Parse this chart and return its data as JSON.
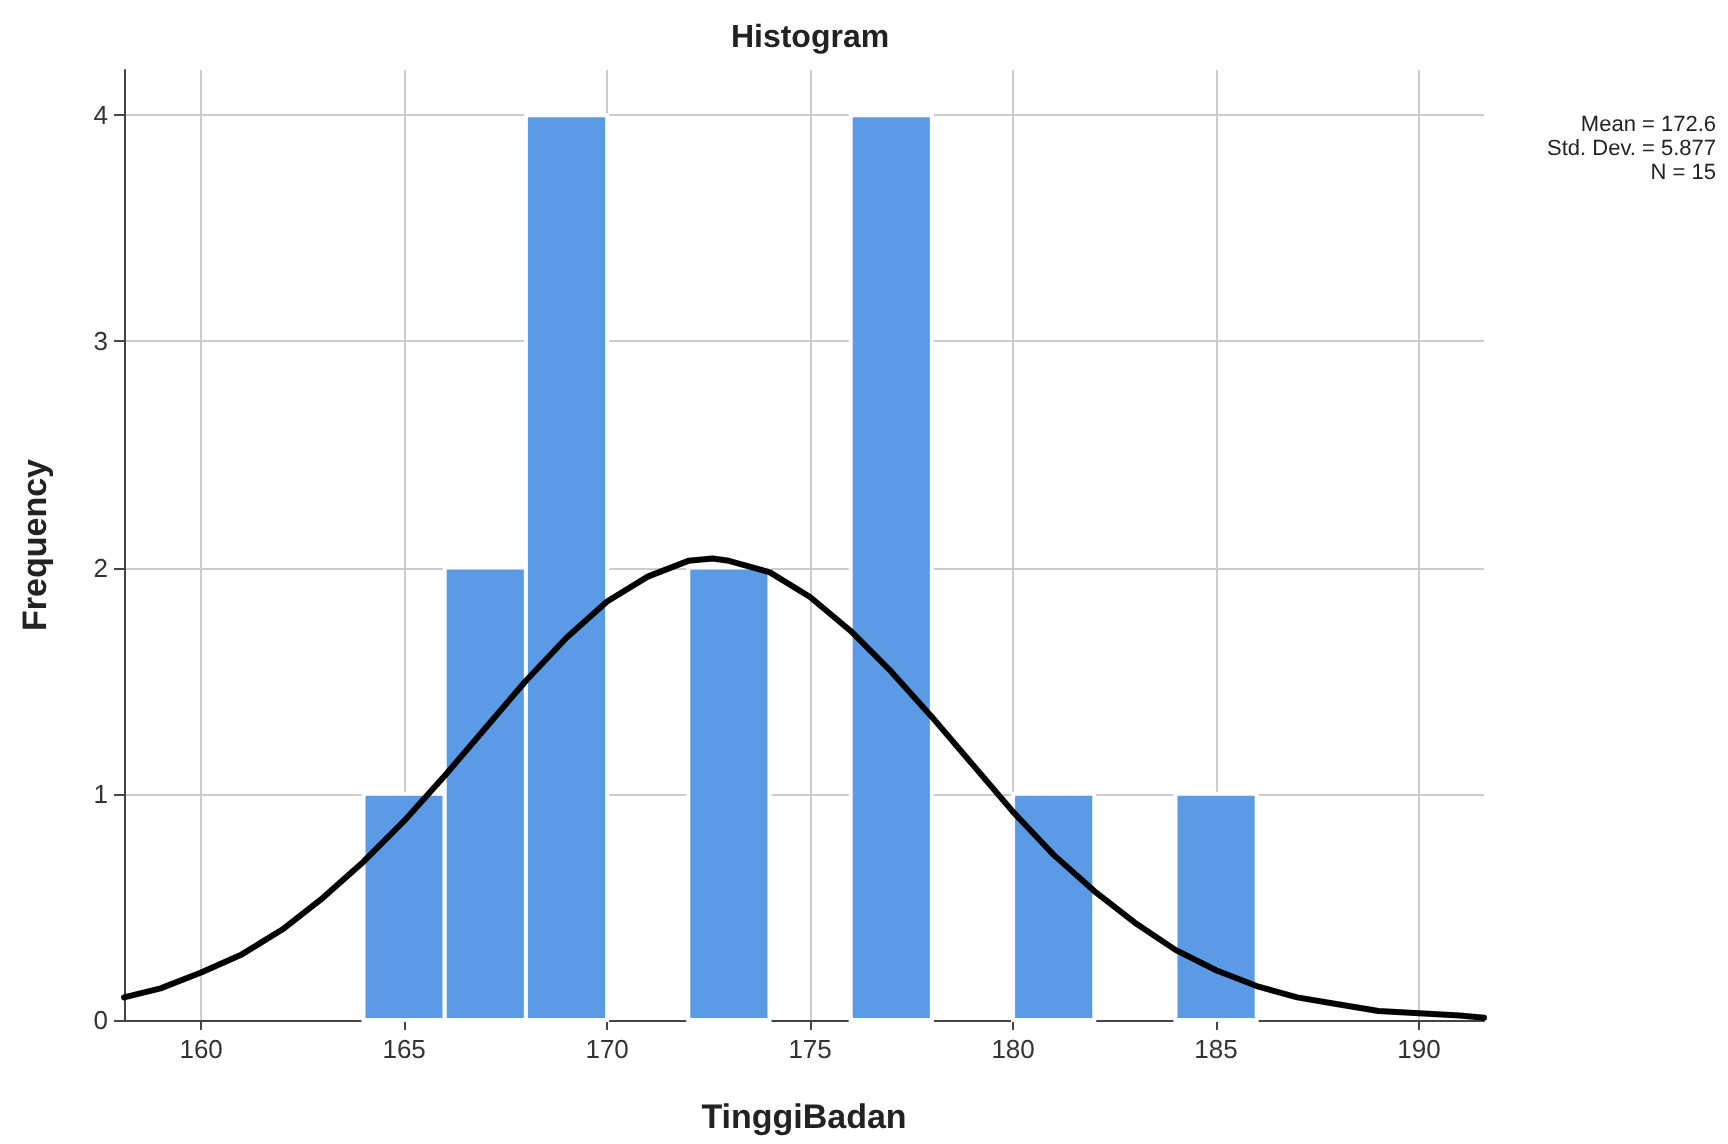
{
  "chart_data": {
    "type": "histogram",
    "title": "Histogram",
    "xlabel": "TinggiBadan",
    "ylabel": "Frequency",
    "annotations": [
      "Mean = 172.6",
      "Std. Dev. = 5.877",
      "N = 15"
    ],
    "series": [
      {
        "color": "#5b9be6",
        "bins": [
          164,
          166,
          168,
          170,
          172,
          174,
          176,
          178,
          180,
          182,
          184,
          186
        ],
        "values": [
          1,
          2,
          4,
          0,
          2,
          0,
          4,
          0,
          1,
          0,
          1
        ]
      },
      {
        "type": "line",
        "color": "#000000",
        "x": [
          158.1,
          159,
          160,
          161,
          162,
          163,
          164,
          165,
          166,
          167,
          168,
          169,
          170,
          171,
          172,
          172.6,
          173,
          174,
          175,
          176,
          177,
          178,
          179,
          180,
          181,
          182,
          183,
          184,
          185,
          186,
          187,
          188,
          189,
          190,
          191,
          191.6
        ],
        "values": [
          0.1,
          0.14,
          0.21,
          0.29,
          0.4,
          0.54,
          0.7,
          0.88,
          1.08,
          1.29,
          1.5,
          1.69,
          1.85,
          1.96,
          2.03,
          2.04,
          2.03,
          1.98,
          1.87,
          1.72,
          1.54,
          1.34,
          1.13,
          0.92,
          0.73,
          0.57,
          0.43,
          0.31,
          0.22,
          0.15,
          0.1,
          0.07,
          0.04,
          0.03,
          0.02,
          0.01
        ]
      }
    ],
    "xlim": [
      158.1,
      191.6
    ],
    "xticks": [
      160,
      165,
      170,
      175,
      180,
      185,
      190
    ],
    "ylim": [
      0,
      4.2
    ],
    "yticks": [
      0,
      1,
      2,
      3,
      4
    ],
    "grid": true,
    "line_style": "solid",
    "marker": "none"
  }
}
